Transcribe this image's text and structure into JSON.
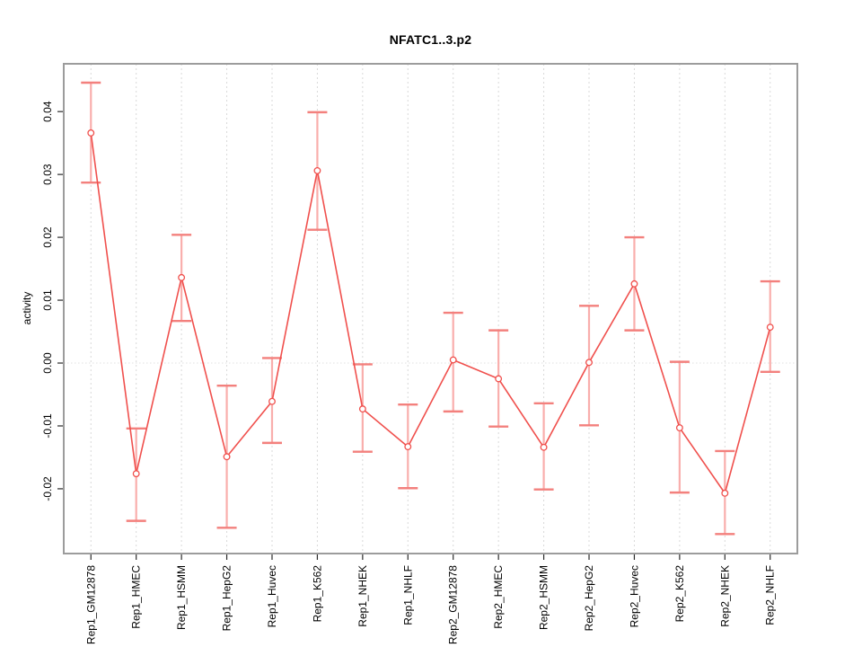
{
  "chart_data": {
    "type": "line",
    "title": "NFATC1..3.p2",
    "xlabel": "",
    "ylabel": "activity",
    "legend": "none",
    "categories": [
      "Rep1_GM12878",
      "Rep1_HMEC",
      "Rep1_HSMM",
      "Rep1_HepG2",
      "Rep1_Huvec",
      "Rep1_K562",
      "Rep1_NHEK",
      "Rep1_NHLF",
      "Rep2_GM12878",
      "Rep2_HMEC",
      "Rep2_HSMM",
      "Rep2_HepG2",
      "Rep2_Huvec",
      "Rep2_K562",
      "Rep2_NHEK",
      "Rep2_NHLF"
    ],
    "series": [
      {
        "name": "activity",
        "marker": "open-circle",
        "values": [
          0.0366,
          -0.0176,
          0.0136,
          -0.0149,
          -0.0061,
          0.0306,
          -0.0073,
          -0.0133,
          0.0005,
          -0.0025,
          -0.0134,
          0.0001,
          0.0126,
          -0.0103,
          -0.0207,
          0.0057
        ],
        "upper": [
          0.0446,
          -0.0104,
          0.0204,
          -0.0036,
          0.0008,
          0.0399,
          -0.0002,
          -0.0066,
          0.008,
          0.0052,
          -0.0064,
          0.0091,
          0.02,
          0.0002,
          -0.014,
          0.013
        ],
        "lower": [
          0.0287,
          -0.0251,
          0.0067,
          -0.0262,
          -0.0127,
          0.0212,
          -0.0141,
          -0.0199,
          -0.0077,
          -0.0101,
          -0.0201,
          -0.0099,
          0.0052,
          -0.0206,
          -0.0272,
          -0.0014
        ]
      }
    ],
    "ylim": [
      -0.0303,
      0.0476
    ],
    "xlim": [
      0.4,
      16.6
    ],
    "yticks": [
      -0.02,
      -0.01,
      0,
      0.01,
      0.02,
      0.03,
      0.04
    ],
    "ytick_labels": [
      "-0.02",
      "-0.01",
      "0.00",
      "0.01",
      "0.02",
      "0.03",
      "0.04"
    ],
    "grid": {
      "vertical": "dashed-per-category",
      "horizontal": "dotted-zero-line-only"
    }
  },
  "colors": {
    "series_line": "#f0504d",
    "marker_stroke": "#f0504d",
    "error_stem": "#f9aeac",
    "error_cap": "#f3807d",
    "gridline": "#d9d9d9",
    "zero_line": "#e0e0e0",
    "plot_border": "#9c9c9c",
    "tick": "#2a2a2a",
    "text": "#000000",
    "background": "#ffffff"
  }
}
